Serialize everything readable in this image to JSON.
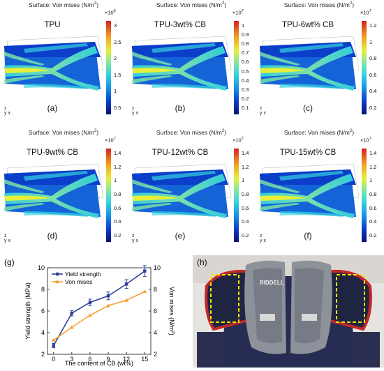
{
  "surface_title": "Surface: Von mises (N/m",
  "surface_title_sup": "2",
  "surface_title_end": ")",
  "panels": [
    {
      "title": "TPU",
      "label": "(a)",
      "exp_base": "×10",
      "exp_pow": "6",
      "ticks": [
        "3",
        "2.5",
        "2",
        "1.5",
        "1",
        "0.5"
      ]
    },
    {
      "title": "TPU-3wt% CB",
      "label": "(b)",
      "exp_base": "×10",
      "exp_pow": "7",
      "ticks": [
        "1",
        "0.9",
        "0.8",
        "0.7",
        "0.6",
        "0.5",
        "0.4",
        "0.3",
        "0.2",
        "0.1"
      ]
    },
    {
      "title": "TPU-6wt% CB",
      "label": "(c)",
      "exp_base": "×10",
      "exp_pow": "7",
      "ticks": [
        "1.2",
        "1",
        "0.8",
        "0.6",
        "0.4",
        "0.2"
      ]
    },
    {
      "title": "TPU-9wt% CB",
      "label": "(d)",
      "exp_base": "×10",
      "exp_pow": "7",
      "ticks": [
        "1.4",
        "1.2",
        "1",
        "0.8",
        "0.6",
        "0.4",
        "0.2"
      ]
    },
    {
      "title": "TPU-12wt% CB",
      "label": "(e)",
      "exp_base": "×10",
      "exp_pow": "7",
      "ticks": [
        "1.4",
        "1.2",
        "1",
        "0.8",
        "0.6",
        "0.4",
        "0.2"
      ]
    },
    {
      "title": "TPU-15wt% CB",
      "label": "(f)",
      "exp_base": "×10",
      "exp_pow": "7",
      "ticks": [
        "1.4",
        "1.2",
        "1",
        "0.8",
        "0.6",
        "0.4",
        "0.2"
      ]
    }
  ],
  "axes_indicator": {
    "z": "z",
    "y": "y",
    "x": "x"
  },
  "panel_g_label": "(g)",
  "panel_h_label": "(h)",
  "photo_logo": "RIDDELL",
  "colors": {
    "yield": "#2b3f9e",
    "vonmises": "#f5a13a",
    "highlight_box": "#f2e600"
  },
  "chart_data": {
    "type": "line",
    "x": [
      0,
      3,
      6,
      9,
      12,
      15
    ],
    "xlabel": "The content of CB (wt%)",
    "xticks": [
      "0",
      "3",
      "6",
      "9",
      "12",
      "15"
    ],
    "xlim": [
      -1,
      16
    ],
    "series": [
      {
        "name": "Yield strength",
        "axis": "left",
        "values": [
          2.8,
          5.8,
          6.8,
          7.4,
          8.5,
          9.7
        ],
        "errors": [
          0.2,
          0.25,
          0.3,
          0.35,
          0.4,
          0.5
        ]
      },
      {
        "name": "Von mises",
        "axis": "right",
        "values": [
          3.3,
          4.5,
          5.6,
          6.5,
          7.0,
          7.8
        ]
      }
    ],
    "ylabel_left": "Yield strength (MPa)",
    "ylim_left": [
      2,
      10
    ],
    "yticks_left": [
      "2",
      "4",
      "6",
      "8",
      "10"
    ],
    "ylabel_right": "Von mises (N/m",
    "ylabel_right_sup": "2",
    "ylabel_right_end": ")",
    "ylim_right": [
      2,
      10
    ],
    "yticks_right": [
      "2",
      "4",
      "6",
      "8",
      "10"
    ],
    "legend": "top-left"
  }
}
